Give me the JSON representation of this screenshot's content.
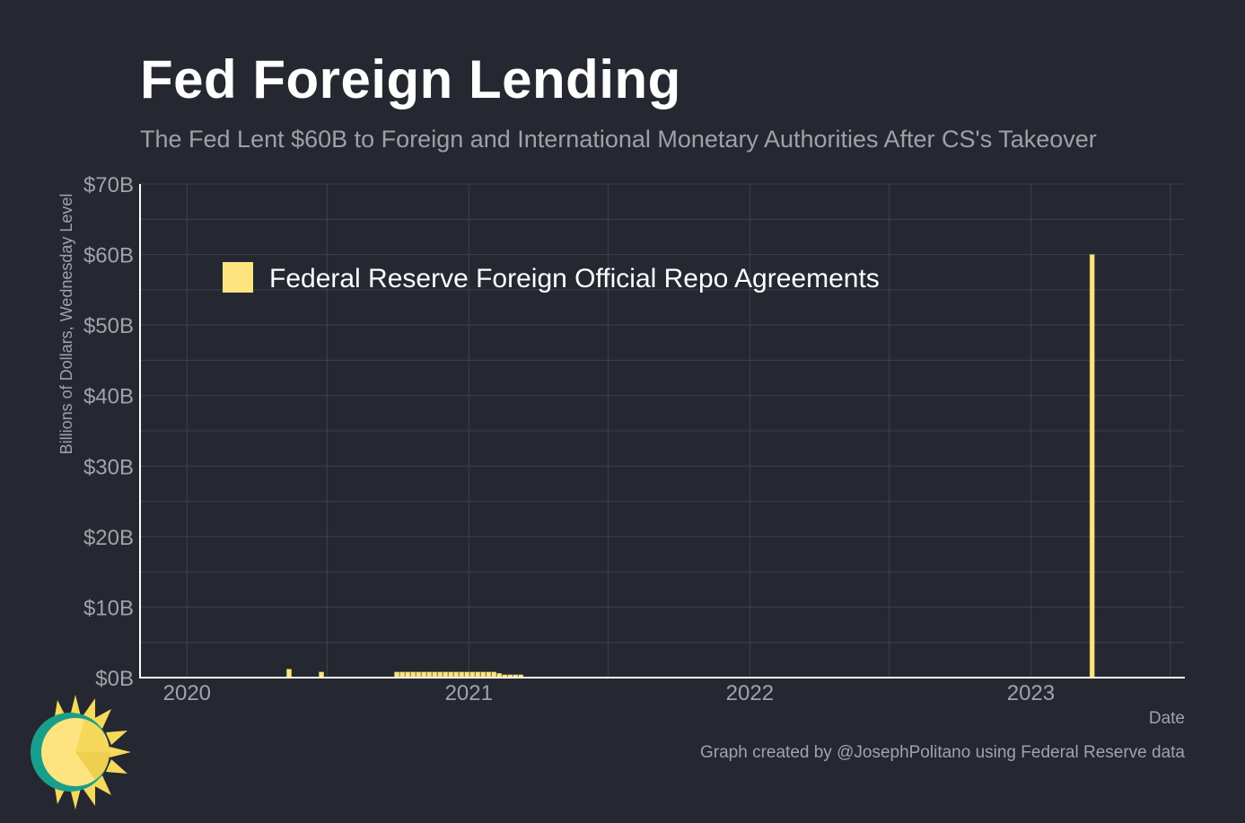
{
  "title": "Fed Foreign Lending",
  "subtitle": "The Fed Lent $60B to Foreign and International Monetary Authorities After CS's Takeover",
  "caption": "Graph created by @JosephPolitano using Federal Reserve data",
  "colors": {
    "background": "#252830",
    "bar": "#fde47f",
    "grid": "#3d414a",
    "axis": "#ffffff",
    "muted_text": "#a0a3aa"
  },
  "logo_icon": "sun-icon",
  "chart_data": {
    "type": "bar",
    "xlabel": "Date",
    "ylabel": "Billions of Dollars, Wednesday Level",
    "ylim": [
      0,
      70
    ],
    "xlim": [
      "2019-11-01",
      "2023-07-20"
    ],
    "y_ticks": [
      0,
      10,
      20,
      30,
      40,
      50,
      60,
      70
    ],
    "y_tick_labels": [
      "$0B",
      "$10B",
      "$20B",
      "$30B",
      "$40B",
      "$50B",
      "$60B",
      "$70B"
    ],
    "x_ticks": [
      "2020-01-01",
      "2021-01-01",
      "2022-01-01",
      "2023-01-01"
    ],
    "x_tick_labels": [
      "2020",
      "2021",
      "2022",
      "2023"
    ],
    "grid": true,
    "legend_position": "top-left",
    "series": [
      {
        "name": "Federal Reserve Foreign Official Repo Agreements",
        "color": "#fde47f",
        "points": [
          {
            "date": "2020-05-13",
            "value": 1.2
          },
          {
            "date": "2020-06-24",
            "value": 0.8
          },
          {
            "date": "2020-09-30",
            "value": 0.8
          },
          {
            "date": "2020-10-07",
            "value": 0.8
          },
          {
            "date": "2020-10-14",
            "value": 0.8
          },
          {
            "date": "2020-10-21",
            "value": 0.8
          },
          {
            "date": "2020-10-28",
            "value": 0.8
          },
          {
            "date": "2020-11-04",
            "value": 0.8
          },
          {
            "date": "2020-11-11",
            "value": 0.8
          },
          {
            "date": "2020-11-18",
            "value": 0.8
          },
          {
            "date": "2020-11-25",
            "value": 0.8
          },
          {
            "date": "2020-12-02",
            "value": 0.8
          },
          {
            "date": "2020-12-09",
            "value": 0.8
          },
          {
            "date": "2020-12-16",
            "value": 0.8
          },
          {
            "date": "2020-12-23",
            "value": 0.8
          },
          {
            "date": "2020-12-30",
            "value": 0.8
          },
          {
            "date": "2021-01-06",
            "value": 0.8
          },
          {
            "date": "2021-01-13",
            "value": 0.8
          },
          {
            "date": "2021-01-20",
            "value": 0.8
          },
          {
            "date": "2021-01-27",
            "value": 0.8
          },
          {
            "date": "2021-02-03",
            "value": 0.8
          },
          {
            "date": "2021-02-10",
            "value": 0.6
          },
          {
            "date": "2021-02-17",
            "value": 0.4
          },
          {
            "date": "2021-02-24",
            "value": 0.4
          },
          {
            "date": "2021-03-03",
            "value": 0.4
          },
          {
            "date": "2021-03-10",
            "value": 0.4
          },
          {
            "date": "2023-03-22",
            "value": 60
          }
        ]
      }
    ]
  }
}
